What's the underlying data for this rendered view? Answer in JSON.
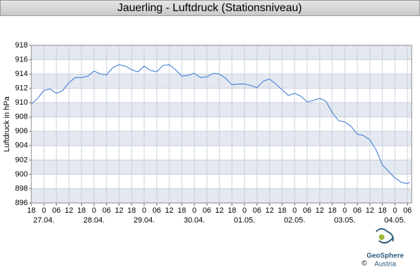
{
  "chart_data": {
    "type": "line",
    "title": "Jauerling - Luftdruck (Stationsniveau)",
    "y_label": "Luftdruck in hPa",
    "logo": {
      "name": "GeoSphere",
      "sub": "Austria",
      "copyright": "©"
    },
    "x": [
      0,
      3,
      6,
      9,
      12,
      15,
      18,
      21,
      24,
      27,
      30,
      33,
      36,
      39,
      42,
      45,
      48,
      51,
      54,
      57,
      60,
      63,
      66,
      69,
      72,
      75,
      78,
      81,
      84,
      87,
      90,
      93,
      96,
      99,
      102,
      105,
      108,
      111,
      114,
      117,
      120,
      123,
      126,
      129,
      132,
      135,
      138,
      141,
      144,
      147,
      150,
      153,
      156,
      159,
      162,
      165,
      168,
      171,
      174,
      177,
      180,
      181
    ],
    "series": [
      {
        "color": "#4f86d9",
        "values": [
          909.8,
          910.6,
          911.7,
          911.9,
          911.3,
          911.7,
          912.8,
          913.5,
          913.5,
          913.7,
          914.4,
          914.0,
          913.9,
          914.9,
          915.3,
          915.1,
          914.6,
          914.3,
          915.1,
          914.5,
          914.3,
          915.2,
          915.3,
          914.6,
          913.7,
          913.8,
          914.1,
          913.5,
          913.6,
          914.1,
          914.0,
          913.4,
          912.5,
          912.6,
          912.6,
          912.4,
          912.1,
          913.0,
          913.3,
          912.6,
          911.8,
          911.0,
          911.3,
          910.9,
          910.1,
          910.3,
          910.6,
          910.2,
          908.6,
          907.5,
          907.3,
          906.7,
          905.6,
          905.4,
          904.8,
          903.4,
          901.3,
          900.4,
          899.5,
          898.9,
          898.7,
          898.9
        ]
      }
    ],
    "xlim": [
      0,
      182
    ],
    "xticks": [
      {
        "value": 0,
        "label": "18"
      },
      {
        "value": 6,
        "label": "0"
      },
      {
        "value": 12,
        "label": "06"
      },
      {
        "value": 18,
        "label": "12"
      },
      {
        "value": 24,
        "label": "18"
      },
      {
        "value": 30,
        "label": "0"
      },
      {
        "value": 36,
        "label": "06"
      },
      {
        "value": 42,
        "label": "12"
      },
      {
        "value": 48,
        "label": "18"
      },
      {
        "value": 54,
        "label": "0"
      },
      {
        "value": 60,
        "label": "06"
      },
      {
        "value": 66,
        "label": "12"
      },
      {
        "value": 72,
        "label": "18"
      },
      {
        "value": 78,
        "label": "0"
      },
      {
        "value": 84,
        "label": "06"
      },
      {
        "value": 90,
        "label": "12"
      },
      {
        "value": 96,
        "label": "18"
      },
      {
        "value": 102,
        "label": "0"
      },
      {
        "value": 108,
        "label": "06"
      },
      {
        "value": 114,
        "label": "12"
      },
      {
        "value": 120,
        "label": "18"
      },
      {
        "value": 126,
        "label": "0"
      },
      {
        "value": 132,
        "label": "06"
      },
      {
        "value": 138,
        "label": "12"
      },
      {
        "value": 144,
        "label": "18"
      },
      {
        "value": 150,
        "label": "0"
      },
      {
        "value": 156,
        "label": "06"
      },
      {
        "value": 162,
        "label": "12"
      },
      {
        "value": 168,
        "label": "18"
      },
      {
        "value": 174,
        "label": "0"
      },
      {
        "value": 180,
        "label": "06"
      }
    ],
    "date_labels": [
      {
        "value": 6,
        "label": "27.04."
      },
      {
        "value": 30,
        "label": "28.04."
      },
      {
        "value": 54,
        "label": "29.04."
      },
      {
        "value": 78,
        "label": "30.04."
      },
      {
        "value": 102,
        "label": "01.05."
      },
      {
        "value": 126,
        "label": "02.05."
      },
      {
        "value": 150,
        "label": "03.05."
      },
      {
        "value": 174,
        "label": "04.05."
      }
    ],
    "ylim": [
      896,
      918
    ],
    "yticks": [
      896,
      898,
      900,
      902,
      904,
      906,
      908,
      910,
      912,
      914,
      916,
      918
    ],
    "grid": true
  }
}
